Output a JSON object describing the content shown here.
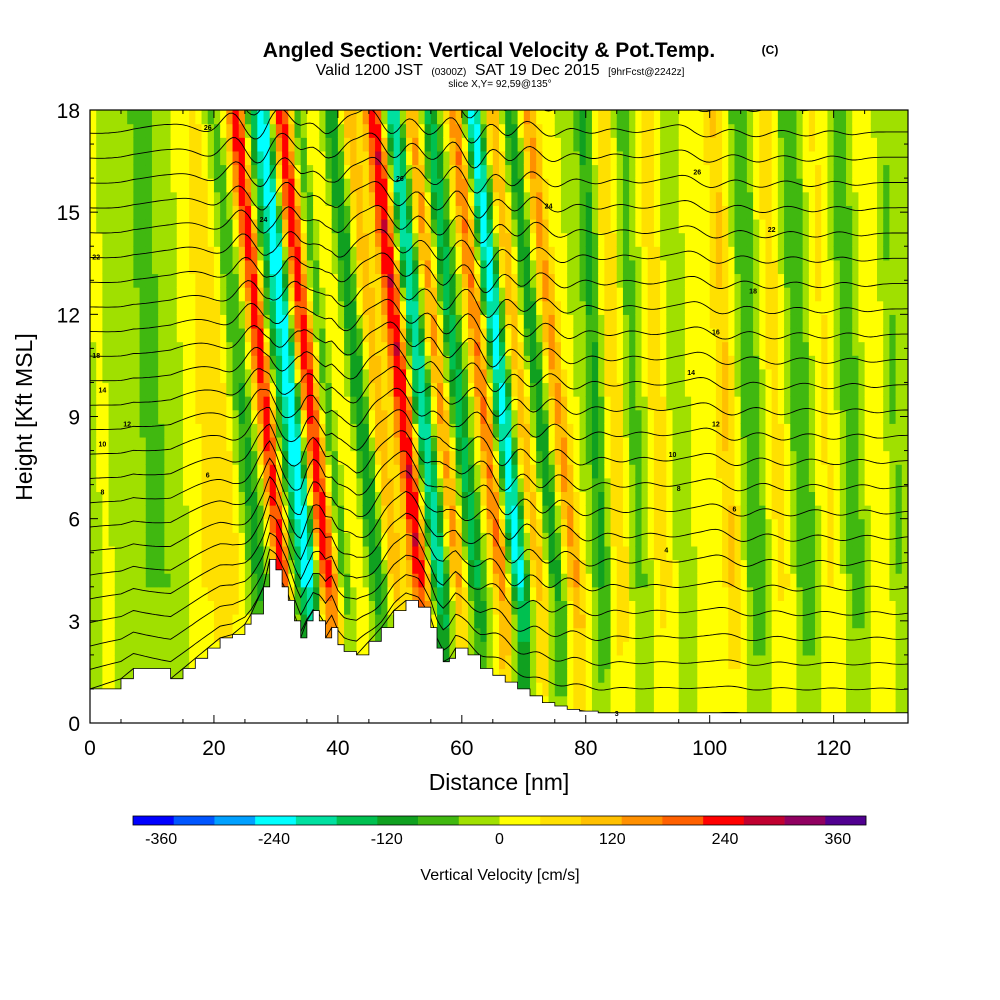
{
  "title": {
    "main": "Angled Section: Vertical Velocity & Pot.Temp.",
    "main_tag": "(C)",
    "valid_prefix": "Valid 1200 JST",
    "valid_zulu": "(0300Z)",
    "valid_date": "SAT 19 Dec 2015",
    "valid_fcst": "[9hrFcst@2242z]",
    "slice": "slice X,Y= 92,59@135°"
  },
  "chart_data": {
    "type": "heatmap",
    "xlabel": "Distance [nm]",
    "ylabel": "Height [Kft MSL]",
    "xlim": [
      0,
      132
    ],
    "ylim": [
      0,
      18
    ],
    "x_ticks": [
      0,
      20,
      40,
      60,
      80,
      100,
      120
    ],
    "y_ticks": [
      0,
      3,
      6,
      9,
      12,
      15,
      18
    ],
    "colorbar": {
      "label": "Vertical Velocity [cm/s]",
      "tick_values": [
        -360,
        -240,
        -120,
        0,
        120,
        240,
        360
      ],
      "tick_labels": [
        "-360",
        "-240",
        "-120",
        "0",
        "120",
        "240",
        "360"
      ],
      "min": -390,
      "max": 390,
      "colors": [
        "#0000ff",
        "#0055ff",
        "#00a0ff",
        "#00ffff",
        "#00e0a0",
        "#00c050",
        "#10a020",
        "#40b810",
        "#a0e000",
        "#ffff00",
        "#ffe000",
        "#ffc000",
        "#ff9000",
        "#ff6000",
        "#ff0000",
        "#c00030",
        "#900060",
        "#500090"
      ]
    },
    "velocity_bands": [
      {
        "x": 0,
        "w": 9.0,
        "v": -30
      },
      {
        "x": 3,
        "w": 4.0,
        "v": 30
      },
      {
        "x": 12,
        "w": 5.0,
        "v": -45
      },
      {
        "x": 19,
        "w": 5.0,
        "v": 20
      },
      {
        "x": 22,
        "w": 4.0,
        "v": 60
      },
      {
        "x": 28,
        "w": 2.0,
        "v": -120
      },
      {
        "x": 32,
        "w": 1.8,
        "v": 270
      },
      {
        "x": 33.5,
        "w": 1.3,
        "v": -150
      },
      {
        "x": 36,
        "w": 1.6,
        "v": -270
      },
      {
        "x": 39,
        "w": 1.8,
        "v": 250
      },
      {
        "x": 41.5,
        "w": 1.3,
        "v": -90
      },
      {
        "x": 44,
        "w": 1.3,
        "v": 45
      },
      {
        "x": 47,
        "w": 1.4,
        "v": -120
      },
      {
        "x": 50,
        "w": 1.3,
        "v": 120
      },
      {
        "x": 54,
        "w": 1.7,
        "v": 270
      },
      {
        "x": 57,
        "w": 1.7,
        "v": -220
      },
      {
        "x": 60,
        "w": 1.4,
        "v": 150
      },
      {
        "x": 63,
        "w": 1.5,
        "v": -150
      },
      {
        "x": 67,
        "w": 1.4,
        "v": 180
      },
      {
        "x": 70,
        "w": 1.5,
        "v": -240
      },
      {
        "x": 73,
        "w": 1.3,
        "v": 120
      },
      {
        "x": 76,
        "w": 1.3,
        "v": -120
      },
      {
        "x": 79,
        "w": 1.5,
        "v": 140
      },
      {
        "x": 83,
        "w": 1.6,
        "v": -100
      },
      {
        "x": 86,
        "w": 1.8,
        "v": 90
      },
      {
        "x": 89,
        "w": 2.0,
        "v": -60
      },
      {
        "x": 93,
        "w": 2.0,
        "v": 70
      },
      {
        "x": 96,
        "w": 2.0,
        "v": -40
      },
      {
        "x": 100,
        "w": 2.0,
        "v": 40
      },
      {
        "x": 104,
        "w": 1.6,
        "v": 90
      },
      {
        "x": 108,
        "w": 1.8,
        "v": -80
      },
      {
        "x": 112,
        "w": 1.8,
        "v": 60
      },
      {
        "x": 116,
        "w": 2.0,
        "v": -80
      },
      {
        "x": 120,
        "w": 2.0,
        "v": 50
      },
      {
        "x": 124,
        "w": 2.0,
        "v": -70
      },
      {
        "x": 128,
        "w": 2.0,
        "v": 40
      },
      {
        "x": 131,
        "w": 1.5,
        "v": -50
      }
    ],
    "terrain": {
      "x": [
        0,
        5,
        7,
        13,
        15,
        17,
        19,
        21,
        23,
        25,
        26,
        28,
        29,
        30,
        31,
        32,
        33,
        34,
        35,
        36,
        37,
        38,
        39,
        40,
        41,
        43,
        45,
        47,
        49,
        51,
        53,
        55,
        56,
        57,
        58,
        59,
        61,
        63,
        65,
        67,
        69,
        71,
        73,
        75,
        77,
        79,
        82,
        86,
        90,
        100,
        110,
        120,
        132
      ],
      "z": [
        1.0,
        1.3,
        1.6,
        1.3,
        1.6,
        1.9,
        2.2,
        2.5,
        2.6,
        2.9,
        3.2,
        4.0,
        4.8,
        4.5,
        4.0,
        3.6,
        3.0,
        2.5,
        3.0,
        3.3,
        3.0,
        2.5,
        2.8,
        2.3,
        2.1,
        2.0,
        2.4,
        2.8,
        3.3,
        3.6,
        3.4,
        2.8,
        2.2,
        1.8,
        1.9,
        2.2,
        2.0,
        1.6,
        1.4,
        1.2,
        1.0,
        0.8,
        0.6,
        0.5,
        0.4,
        0.35,
        0.3,
        0.3,
        0.3,
        0.3,
        0.3,
        0.3,
        0.3
      ]
    },
    "theta_contours": {
      "surface_theta": 3,
      "top_theta": 27,
      "interval": 1,
      "labels": [
        {
          "x": 19,
          "y": 17.5,
          "text": "26"
        },
        {
          "x": 28,
          "y": 14.8,
          "text": "24"
        },
        {
          "x": 1,
          "y": 13.7,
          "text": "22"
        },
        {
          "x": 1,
          "y": 10.8,
          "text": "18"
        },
        {
          "x": 2,
          "y": 9.8,
          "text": "14"
        },
        {
          "x": 6,
          "y": 8.8,
          "text": "12"
        },
        {
          "x": 2,
          "y": 8.2,
          "text": "10"
        },
        {
          "x": 2,
          "y": 6.8,
          "text": "8"
        },
        {
          "x": 19,
          "y": 7.3,
          "text": "6"
        },
        {
          "x": 50,
          "y": 16.0,
          "text": "26"
        },
        {
          "x": 74,
          "y": 15.2,
          "text": "24"
        },
        {
          "x": 98,
          "y": 16.2,
          "text": "26"
        },
        {
          "x": 110,
          "y": 14.5,
          "text": "22"
        },
        {
          "x": 107,
          "y": 12.7,
          "text": "18"
        },
        {
          "x": 101,
          "y": 11.5,
          "text": "16"
        },
        {
          "x": 97,
          "y": 10.3,
          "text": "14"
        },
        {
          "x": 101,
          "y": 8.8,
          "text": "12"
        },
        {
          "x": 94,
          "y": 7.9,
          "text": "10"
        },
        {
          "x": 95,
          "y": 6.9,
          "text": "8"
        },
        {
          "x": 104,
          "y": 6.3,
          "text": "6"
        },
        {
          "x": 93,
          "y": 5.1,
          "text": "4"
        },
        {
          "x": 85,
          "y": 0.3,
          "text": "3"
        }
      ]
    }
  }
}
